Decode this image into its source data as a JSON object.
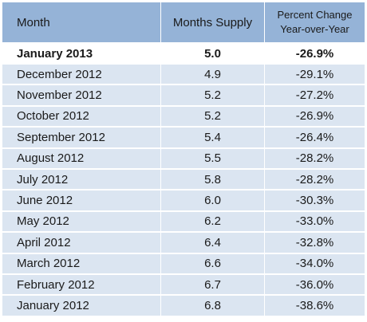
{
  "header": {
    "month": "Month",
    "supply": "Months Supply",
    "pct_line1": "Percent Change",
    "pct_line2": "Year-over-Year"
  },
  "rows": [
    {
      "month": "January 2013",
      "supply": "5.0",
      "pct": "-26.9%"
    },
    {
      "month": "December 2012",
      "supply": "4.9",
      "pct": "-29.1%"
    },
    {
      "month": "November 2012",
      "supply": "5.2",
      "pct": "-27.2%"
    },
    {
      "month": "October 2012",
      "supply": "5.2",
      "pct": "-26.9%"
    },
    {
      "month": "September 2012",
      "supply": "5.4",
      "pct": "-26.4%"
    },
    {
      "month": "August 2012",
      "supply": "5.5",
      "pct": "-28.2%"
    },
    {
      "month": "July 2012",
      "supply": "5.8",
      "pct": "-28.2%"
    },
    {
      "month": "June 2012",
      "supply": "6.0",
      "pct": "-30.3%"
    },
    {
      "month": "May 2012",
      "supply": "6.2",
      "pct": "-33.0%"
    },
    {
      "month": "April 2012",
      "supply": "6.4",
      "pct": "-32.8%"
    },
    {
      "month": "March 2012",
      "supply": "6.6",
      "pct": "-34.0%"
    },
    {
      "month": "February 2012",
      "supply": "6.7",
      "pct": "-36.0%"
    },
    {
      "month": "January 2012",
      "supply": "6.8",
      "pct": "-38.6%"
    }
  ],
  "colors": {
    "header_bg": "#95b3d7",
    "row_bg": "#dbe5f1",
    "highlight_row_bg": "#ffffff"
  }
}
